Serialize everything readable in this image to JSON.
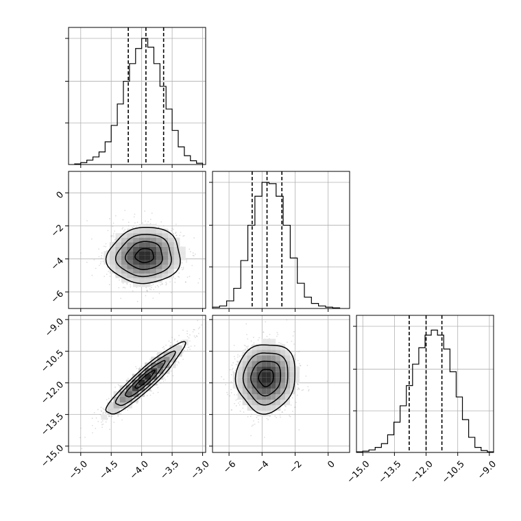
{
  "chart_data": {
    "type": "corner",
    "parameters": [
      {
        "ticks": [
          -5.0,
          -4.5,
          -4.0,
          -3.5,
          -3.0
        ],
        "tick_labels": [
          "−5.0",
          "−4.5",
          "−4.0",
          "−3.5",
          "−3.0"
        ],
        "range": [
          -5.2,
          -2.95
        ]
      },
      {
        "ticks": [
          -6,
          -4,
          -2,
          0
        ],
        "tick_labels": [
          "−6",
          "−4",
          "−2",
          "0"
        ],
        "range": [
          -7.0,
          1.3
        ]
      },
      {
        "ticks": [
          -15.0,
          -13.5,
          -12.0,
          -10.5,
          -9.0
        ],
        "tick_labels": [
          "−15.0",
          "−13.5",
          "−12.0",
          "−10.5",
          "−9.0"
        ],
        "range": [
          -15.3,
          -8.8
        ]
      }
    ],
    "histograms": [
      {
        "bins_range": [
          -5.1,
          -3.0
        ],
        "counts": [
          0.005,
          0.015,
          0.035,
          0.06,
          0.1,
          0.18,
          0.31,
          0.48,
          0.66,
          0.8,
          0.92,
          1.0,
          0.93,
          0.8,
          0.62,
          0.44,
          0.27,
          0.14,
          0.07,
          0.03,
          0.01
        ],
        "quantiles": [
          -4.22,
          -3.93,
          -3.64
        ]
      },
      {
        "bins_range": [
          -7.0,
          0.7
        ],
        "counts": [
          0.01,
          0.02,
          0.06,
          0.16,
          0.38,
          0.66,
          0.89,
          1.0,
          0.99,
          0.89,
          0.66,
          0.4,
          0.2,
          0.09,
          0.04,
          0.02,
          0.01,
          0.005
        ],
        "quantiles": [
          -4.6,
          -3.7,
          -2.8
        ]
      },
      {
        "bins_range": [
          -15.3,
          -8.8
        ],
        "counts": [
          0.005,
          0.01,
          0.02,
          0.04,
          0.07,
          0.14,
          0.24,
          0.37,
          0.53,
          0.7,
          0.83,
          0.93,
          0.97,
          0.93,
          0.82,
          0.64,
          0.44,
          0.26,
          0.12,
          0.04,
          0.015,
          0.005
        ],
        "quantiles": [
          -12.8,
          -12.0,
          -11.25
        ]
      }
    ],
    "pairs": [
      {
        "x": 0,
        "y": 1,
        "center": [
          -3.95,
          -3.8
        ],
        "sigma": [
          0.3,
          0.85
        ],
        "corr": 0.05
      },
      {
        "x": 0,
        "y": 2,
        "center": [
          -3.95,
          -11.85
        ],
        "sigma": [
          0.32,
          0.85
        ],
        "corr": 0.93
      },
      {
        "x": 1,
        "y": 2,
        "center": [
          -3.75,
          -11.75
        ],
        "sigma": [
          0.9,
          0.82
        ],
        "corr": 0.05
      }
    ],
    "contour_levels": [
      0.5,
      1.0,
      1.5,
      2.0
    ]
  }
}
